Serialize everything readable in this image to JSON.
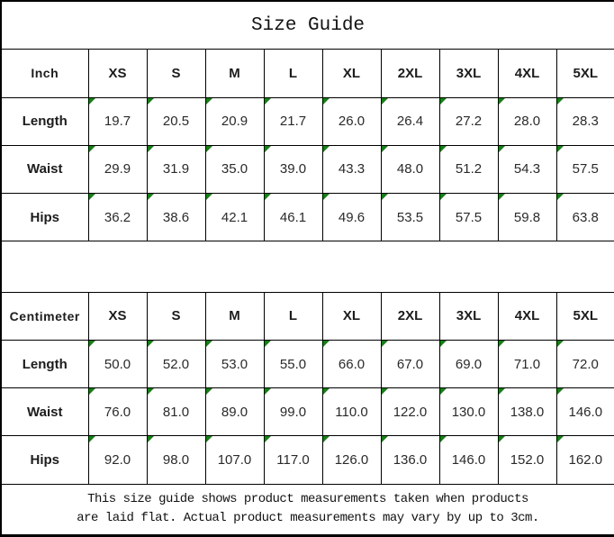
{
  "title": "Size Guide",
  "colors": {
    "border": "#000000",
    "background": "#ffffff",
    "marker_green": "#128212"
  },
  "sizes": [
    "XS",
    "S",
    "M",
    "L",
    "XL",
    "2XL",
    "3XL",
    "4XL",
    "5XL"
  ],
  "inch_table": {
    "unit_label": "Inch",
    "rows": [
      {
        "label": "Length",
        "values": [
          "19.7",
          "20.5",
          "20.9",
          "21.7",
          "26.0",
          "26.4",
          "27.2",
          "28.0",
          "28.3"
        ]
      },
      {
        "label": "Waist",
        "values": [
          "29.9",
          "31.9",
          "35.0",
          "39.0",
          "43.3",
          "48.0",
          "51.2",
          "54.3",
          "57.5"
        ]
      },
      {
        "label": "Hips",
        "values": [
          "36.2",
          "38.6",
          "42.1",
          "46.1",
          "49.6",
          "53.5",
          "57.5",
          "59.8",
          "63.8"
        ]
      }
    ]
  },
  "cm_table": {
    "unit_label": "Centimeter",
    "rows": [
      {
        "label": "Length",
        "values": [
          "50.0",
          "52.0",
          "53.0",
          "55.0",
          "66.0",
          "67.0",
          "69.0",
          "71.0",
          "72.0"
        ]
      },
      {
        "label": "Waist",
        "values": [
          "76.0",
          "81.0",
          "89.0",
          "99.0",
          "110.0",
          "122.0",
          "130.0",
          "138.0",
          "146.0"
        ]
      },
      {
        "label": "Hips",
        "values": [
          "92.0",
          "98.0",
          "107.0",
          "117.0",
          "126.0",
          "136.0",
          "146.0",
          "152.0",
          "162.0"
        ]
      }
    ]
  },
  "footer": {
    "line1": "This size guide shows product measurements taken when products",
    "line2": "are laid flat. Actual product measurements may vary by up to 3cm."
  }
}
